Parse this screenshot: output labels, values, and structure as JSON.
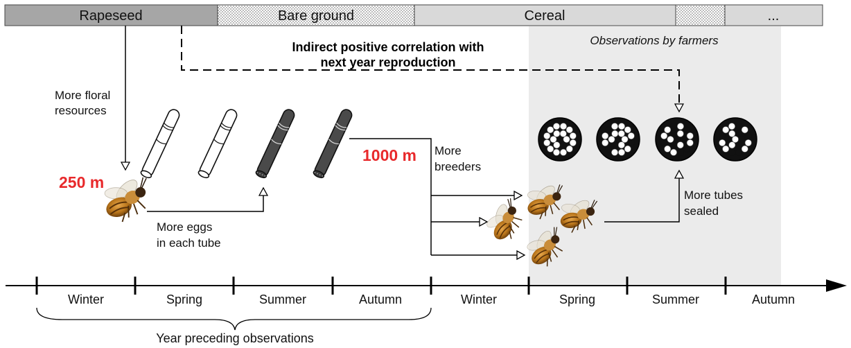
{
  "crop_bar": {
    "segments": [
      {
        "label": "Rapeseed",
        "fill": "#a6a6a6"
      },
      {
        "label": "Bare ground",
        "fill": "dots"
      },
      {
        "label": "Cereal",
        "fill": "#d9d9d9"
      },
      {
        "label": "",
        "fill": "dots"
      },
      {
        "label": "...",
        "fill": "#d9d9d9"
      }
    ]
  },
  "observations_label": "Observations by farmers",
  "correlation_label": {
    "line1": "Indirect positive correlation with",
    "line2": "next year reproduction"
  },
  "floral_label": {
    "line1": "More floral",
    "line2": "resources"
  },
  "distance_near": "250 m",
  "distance_far": "1000 m",
  "eggs_label": {
    "line1": "More eggs",
    "line2": "in each tube"
  },
  "breeders_label": {
    "line1": "More",
    "line2": "breeders"
  },
  "sealed_label": {
    "line1": "More tubes",
    "line2": "sealed"
  },
  "seasons": [
    "Winter",
    "Spring",
    "Summer",
    "Autumn",
    "Winter",
    "Spring",
    "Summer",
    "Autumn"
  ],
  "brace_label": "Year preceding observations",
  "colors": {
    "highlight_red": "#e8292b",
    "shade": "#ebebeb",
    "rapeseed": "#a6a6a6",
    "cereal": "#d9d9d9",
    "bee_body": "#b8741a"
  },
  "icons": [
    "nesting-tube-icon",
    "nest-block-icon",
    "bee-icon"
  ]
}
